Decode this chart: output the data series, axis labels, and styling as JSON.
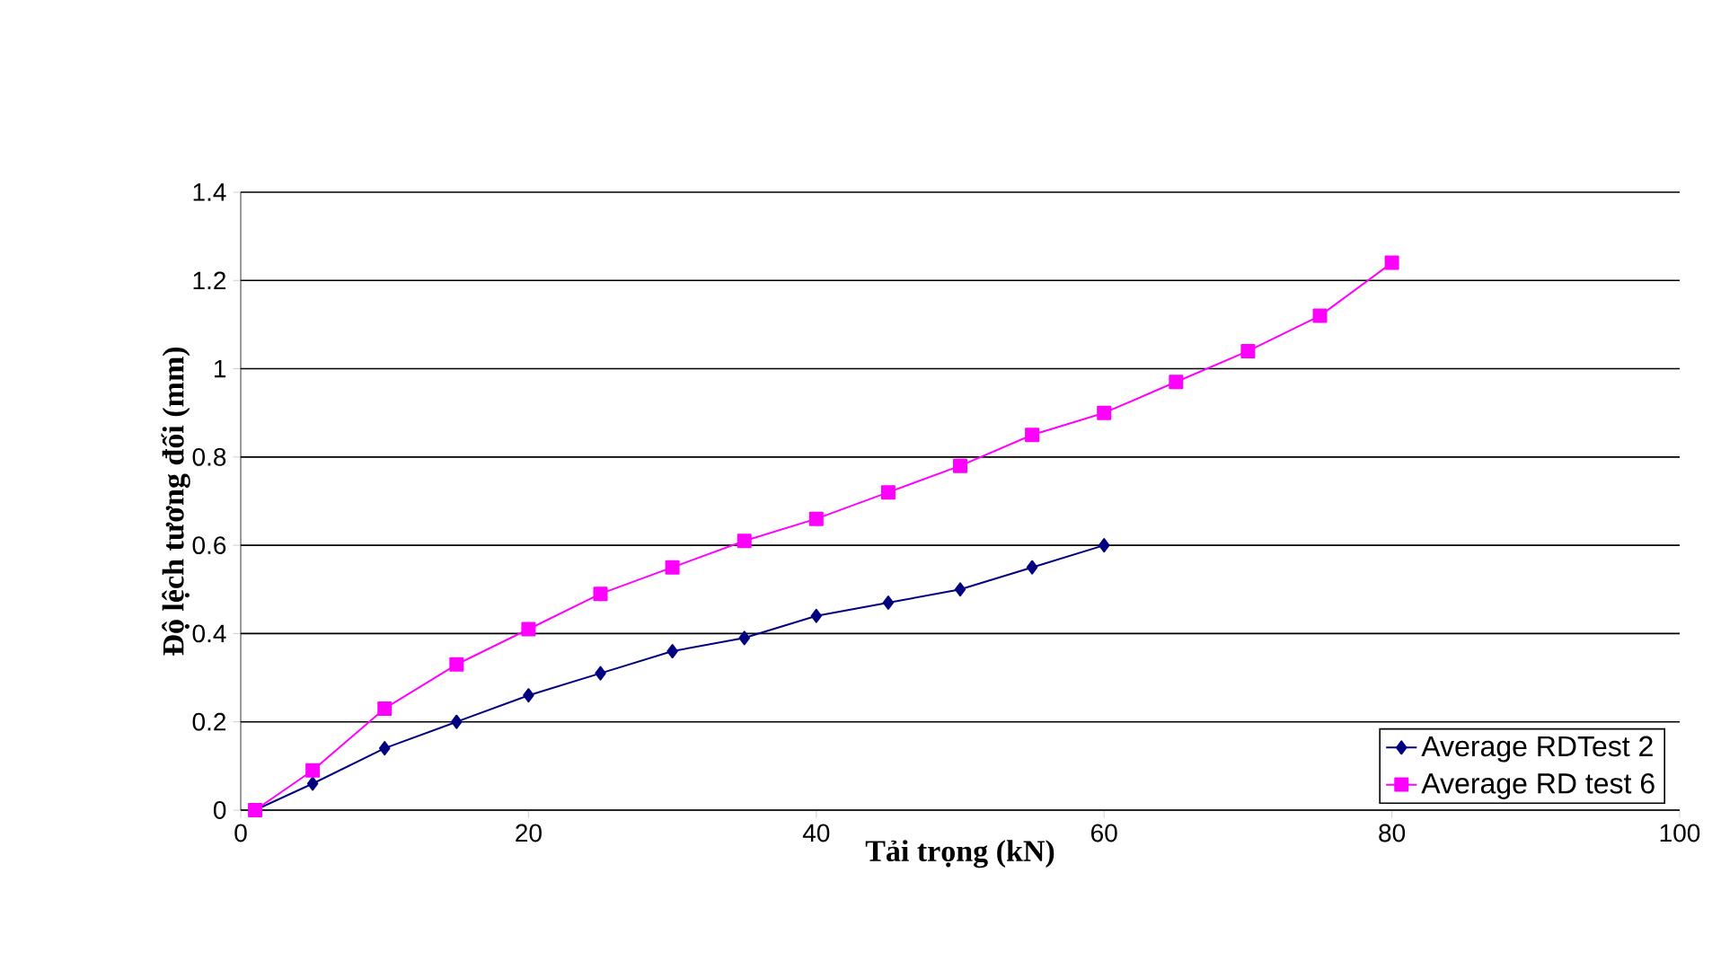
{
  "chart_data": {
    "type": "line",
    "xlabel": "Tải trọng (kN)",
    "ylabel": "Độ lệch tương đối (mm)",
    "xlim": [
      0,
      100
    ],
    "xticks": [
      0,
      20,
      40,
      60,
      80,
      100
    ],
    "ylim": [
      0,
      1.4
    ],
    "yticks": [
      0,
      0.2,
      0.4,
      0.6,
      0.8,
      1,
      1.2,
      1.4
    ],
    "grid": "y",
    "legend": "bottom right",
    "line_style": "solid",
    "series": [
      {
        "name": "Average RDTest 2",
        "color": "#000080",
        "marker": "diamond",
        "x": [
          1,
          5,
          10,
          15,
          20,
          25,
          30,
          35,
          40,
          45,
          50,
          55,
          60
        ],
        "values": [
          0,
          0.06,
          0.14,
          0.2,
          0.26,
          0.31,
          0.36,
          0.39,
          0.44,
          0.47,
          0.5,
          0.55,
          0.6
        ]
      },
      {
        "name": "Average RD test 6",
        "color": "#ff00ff",
        "marker": "square",
        "x": [
          1,
          5,
          10,
          15,
          20,
          25,
          30,
          35,
          40,
          45,
          50,
          55,
          60,
          65,
          70,
          75,
          80
        ],
        "values": [
          0,
          0.09,
          0.23,
          0.33,
          0.41,
          0.49,
          0.55,
          0.61,
          0.66,
          0.72,
          0.78,
          0.85,
          0.9,
          0.97,
          1.04,
          1.12,
          1.24
        ]
      }
    ]
  }
}
